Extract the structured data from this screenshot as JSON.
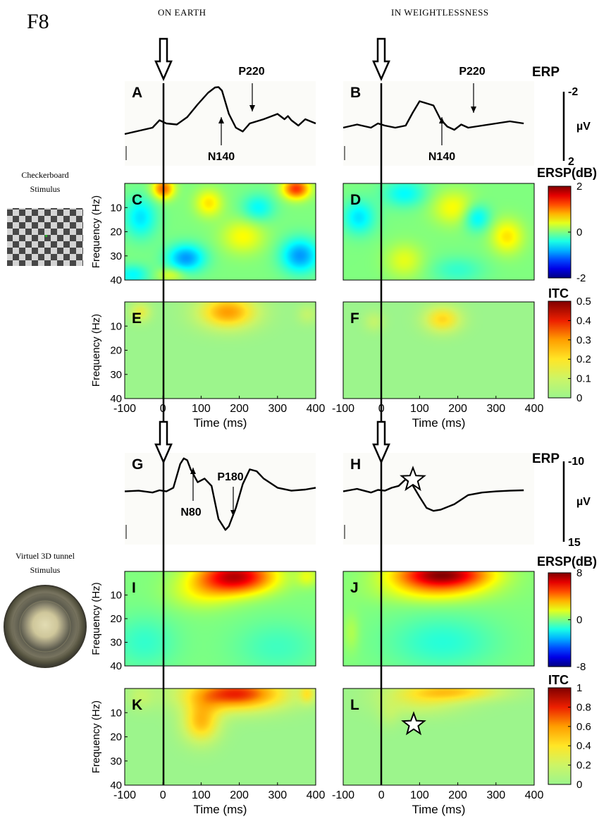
{
  "figure_id": "F8",
  "conditions": {
    "left": "ON EARTH",
    "right": "IN WEIGHTLESSNESS"
  },
  "stimuli": {
    "checkerboard": {
      "line1": "Checkerboard",
      "line2": "Stimulus"
    },
    "tunnel": {
      "line1": "Virtuel 3D tunnel",
      "line2": "Stimulus"
    }
  },
  "colors": {
    "jet_low": "#00007f",
    "jet_mid": "#7fff7f",
    "jet_high": "#7f0000",
    "itc_base": "#9cf58c"
  },
  "icons": [
    "stimulus-onset-arrow-icon",
    "significance-star-icon",
    "checkerboard-icon",
    "tunnel-icon"
  ],
  "chart_data": [
    {
      "type": "line",
      "panel": "A",
      "name": "ERP checkerboard on earth",
      "ylabel": "ERP",
      "unit": "µV",
      "ylim": [
        2,
        -2
      ],
      "x": [
        -100,
        -60,
        -20,
        0,
        20,
        50,
        80,
        110,
        140,
        160,
        170,
        180,
        190,
        200,
        220,
        240,
        260,
        300,
        340,
        360,
        370,
        380,
        400,
        420,
        450
      ],
      "y": [
        0.5,
        0.35,
        0.2,
        -0.15,
        0.0,
        0.05,
        -0.3,
        -0.9,
        -1.45,
        -1.7,
        -1.72,
        -1.55,
        -1.0,
        -0.45,
        0.2,
        0.38,
        0.0,
        -0.2,
        -0.45,
        -0.2,
        -0.35,
        -0.15,
        0.1,
        -0.2,
        0.0
      ],
      "peaks": [
        {
          "label": "N140"
        },
        {
          "label": "P220"
        }
      ],
      "scale_ticks": [
        "-2",
        "µV",
        "2"
      ]
    },
    {
      "type": "line",
      "panel": "B",
      "name": "ERP checkerboard weightlessness",
      "ylabel": "ERP",
      "unit": "µV",
      "ylim": [
        2,
        -2
      ],
      "x": [
        -100,
        -60,
        -20,
        0,
        20,
        50,
        80,
        100,
        120,
        140,
        160,
        180,
        200,
        220,
        240,
        260,
        300,
        340,
        380,
        420
      ],
      "y": [
        0.2,
        0.05,
        0.2,
        0.0,
        0.1,
        0.2,
        0.1,
        -0.5,
        -1.05,
        -0.95,
        -0.85,
        -0.2,
        0.15,
        0.3,
        0.05,
        0.2,
        0.1,
        0.0,
        -0.1,
        0.0
      ],
      "peaks": [
        {
          "label": "N140"
        },
        {
          "label": "P220"
        }
      ]
    },
    {
      "type": "heatmap",
      "panel": "C",
      "measure": "ERSP(dB)",
      "xlabel": "",
      "ylabel": "Frequency (Hz)",
      "xlim": [
        -100,
        400
      ],
      "ylim": [
        0,
        40
      ],
      "clim": [
        -2,
        2
      ],
      "xticks": [],
      "yticks": [
        "10",
        "20",
        "30",
        "40"
      ],
      "colorbar_ticks": [
        "2",
        "0",
        "-2"
      ],
      "blobs": [
        {
          "t": 0,
          "f": 2,
          "st": 20,
          "sf": 3,
          "v": 1.1
        },
        {
          "t": 350,
          "f": 2,
          "st": 25,
          "sf": 3,
          "v": 1.3
        },
        {
          "t": 120,
          "f": 8,
          "st": 25,
          "sf": 4,
          "v": 0.6
        },
        {
          "t": 210,
          "f": 22,
          "st": 40,
          "sf": 5,
          "v": 0.5
        },
        {
          "t": -60,
          "f": 14,
          "st": 30,
          "sf": 6,
          "v": -0.6
        },
        {
          "t": 60,
          "f": 31,
          "st": 35,
          "sf": 4,
          "v": -0.9
        },
        {
          "t": 360,
          "f": 30,
          "st": 35,
          "sf": 5,
          "v": -0.9
        },
        {
          "t": 250,
          "f": 10,
          "st": 30,
          "sf": 4,
          "v": -0.5
        },
        {
          "t": -80,
          "f": 38,
          "st": 30,
          "sf": 3,
          "v": -0.5
        },
        {
          "t": 20,
          "f": 38,
          "st": 25,
          "sf": 2,
          "v": 0.4
        }
      ]
    },
    {
      "type": "heatmap",
      "panel": "D",
      "measure": "ERSP(dB)",
      "xlabel": "",
      "ylabel": "",
      "xlim": [
        -100,
        400
      ],
      "ylim": [
        0,
        40
      ],
      "clim": [
        -2,
        2
      ],
      "xticks": [],
      "yticks": [],
      "blobs": [
        {
          "t": 60,
          "f": 4,
          "st": 40,
          "sf": 4,
          "v": -0.5
        },
        {
          "t": 190,
          "f": 10,
          "st": 40,
          "sf": 5,
          "v": 0.5
        },
        {
          "t": -60,
          "f": 14,
          "st": 30,
          "sf": 5,
          "v": -0.6
        },
        {
          "t": 330,
          "f": 22,
          "st": 30,
          "sf": 5,
          "v": 0.6
        },
        {
          "t": 250,
          "f": 14,
          "st": 25,
          "sf": 4,
          "v": -0.6
        },
        {
          "t": 60,
          "f": 32,
          "st": 35,
          "sf": 5,
          "v": 0.4
        },
        {
          "t": 200,
          "f": 36,
          "st": 50,
          "sf": 4,
          "v": -0.3
        }
      ]
    },
    {
      "type": "heatmap",
      "panel": "E",
      "measure": "ITC",
      "colormap": "itc",
      "xlabel": "Time (ms)",
      "ylabel": "Frequency (Hz)",
      "xlim": [
        -100,
        400
      ],
      "ylim": [
        0,
        40
      ],
      "clim": [
        0,
        0.5
      ],
      "xticks": [
        "-100",
        "0",
        "100",
        "200",
        "300",
        "400"
      ],
      "yticks": [
        "10",
        "20",
        "30",
        "40"
      ],
      "colorbar_ticks": [
        "0.5",
        "0.4",
        "0.3",
        "0.2",
        "0.1",
        "0"
      ],
      "blobs": [
        {
          "t": 170,
          "f": 4,
          "st": 55,
          "sf": 5,
          "v": 0.3
        },
        {
          "t": -60,
          "f": 4,
          "st": 20,
          "sf": 3,
          "v": 0.15
        },
        {
          "t": 380,
          "f": 5,
          "st": 20,
          "sf": 3,
          "v": 0.08
        }
      ]
    },
    {
      "type": "heatmap",
      "panel": "F",
      "measure": "ITC",
      "colormap": "itc",
      "xlabel": "Time (ms)",
      "ylabel": "",
      "xlim": [
        -100,
        400
      ],
      "ylim": [
        0,
        40
      ],
      "clim": [
        0,
        0.5
      ],
      "xticks": [
        "-100",
        "0",
        "100",
        "200",
        "300",
        "400"
      ],
      "yticks": [],
      "blobs": [
        {
          "t": 160,
          "f": 7,
          "st": 35,
          "sf": 4,
          "v": 0.22
        },
        {
          "t": -20,
          "f": 8,
          "st": 20,
          "sf": 3,
          "v": 0.08
        }
      ]
    },
    {
      "type": "line",
      "panel": "G",
      "name": "ERP tunnel on earth",
      "ylabel": "ERP",
      "unit": "µV",
      "ylim": [
        15,
        -10
      ],
      "x": [
        -100,
        -60,
        -20,
        0,
        20,
        40,
        60,
        70,
        80,
        90,
        110,
        130,
        150,
        170,
        190,
        200,
        220,
        240,
        260,
        280,
        300,
        340,
        380,
        420,
        450
      ],
      "y": [
        0.5,
        0.3,
        0.8,
        0.2,
        0.5,
        -0.5,
        -7.0,
        -8.5,
        -8.0,
        -5.5,
        -2.0,
        -3.0,
        -1.0,
        8.0,
        11.0,
        10.0,
        5.0,
        -1.5,
        -5.5,
        -5.0,
        -3.0,
        -0.5,
        0.3,
        0.0,
        -0.5
      ],
      "peaks": [
        {
          "label": "N80"
        },
        {
          "label": "P180"
        }
      ],
      "scale_ticks": [
        "-10",
        "µV",
        "15"
      ]
    },
    {
      "type": "line",
      "panel": "H",
      "name": "ERP tunnel weightlessness",
      "ylabel": "ERP",
      "unit": "µV",
      "ylim": [
        15,
        -10
      ],
      "x": [
        -100,
        -60,
        -20,
        0,
        20,
        40,
        60,
        80,
        100,
        120,
        140,
        160,
        180,
        220,
        260,
        300,
        340,
        380,
        420
      ],
      "y": [
        0.5,
        -0.2,
        0.8,
        0.1,
        0.3,
        -0.5,
        -1.0,
        -2.8,
        -1.2,
        2.0,
        5.0,
        5.8,
        5.5,
        4.0,
        1.5,
        0.8,
        0.5,
        0.3,
        0.2
      ],
      "peaks": []
    },
    {
      "type": "heatmap",
      "panel": "I",
      "measure": "ERSP(dB)",
      "xlabel": "",
      "ylabel": "Frequency (Hz)",
      "xlim": [
        -100,
        400
      ],
      "ylim": [
        0,
        40
      ],
      "clim": [
        -8,
        8
      ],
      "xticks": [],
      "yticks": [
        "10",
        "20",
        "30",
        "40"
      ],
      "colorbar_ticks": [
        "8",
        "0",
        "-8"
      ],
      "blobs": [
        {
          "t": 190,
          "f": 2,
          "st": 70,
          "sf": 5,
          "v": 7.0
        },
        {
          "t": 100,
          "f": 9,
          "st": 60,
          "sf": 5,
          "v": 1.5
        },
        {
          "t": -50,
          "f": 30,
          "st": 60,
          "sf": 8,
          "v": -1.2
        },
        {
          "t": 300,
          "f": 32,
          "st": 80,
          "sf": 8,
          "v": -1.0
        },
        {
          "t": 380,
          "f": 2,
          "st": 20,
          "sf": 3,
          "v": 1.5
        }
      ]
    },
    {
      "type": "heatmap",
      "panel": "J",
      "measure": "ERSP(dB)",
      "xlabel": "",
      "ylabel": "",
      "xlim": [
        -100,
        400
      ],
      "ylim": [
        0,
        40
      ],
      "clim": [
        -8,
        8
      ],
      "xticks": [],
      "yticks": [],
      "blobs": [
        {
          "t": 160,
          "f": 1,
          "st": 85,
          "sf": 4,
          "v": 7.5
        },
        {
          "t": 140,
          "f": 8,
          "st": 100,
          "sf": 4,
          "v": 2.0
        },
        {
          "t": 160,
          "f": 30,
          "st": 100,
          "sf": 8,
          "v": -1.4
        },
        {
          "t": -80,
          "f": 26,
          "st": 15,
          "sf": 6,
          "v": 0.8
        }
      ]
    },
    {
      "type": "heatmap",
      "panel": "K",
      "measure": "ITC",
      "colormap": "itc",
      "xlabel": "Time (ms)",
      "ylabel": "Frequency (Hz)",
      "xlim": [
        -100,
        400
      ],
      "ylim": [
        0,
        40
      ],
      "clim": [
        0,
        1
      ],
      "xticks": [
        "-100",
        "0",
        "100",
        "200",
        "300",
        "400"
      ],
      "yticks": [
        "10",
        "20",
        "30",
        "40"
      ],
      "colorbar_ticks": [
        "1",
        "0.8",
        "0.6",
        "0.4",
        "0.2",
        "0"
      ],
      "blobs": [
        {
          "t": 190,
          "f": 2,
          "st": 95,
          "sf": 5,
          "v": 0.8
        },
        {
          "t": 100,
          "f": 14,
          "st": 35,
          "sf": 6,
          "v": 0.5
        },
        {
          "t": 380,
          "f": 2,
          "st": 15,
          "sf": 3,
          "v": 0.3
        },
        {
          "t": -60,
          "f": 3,
          "st": 25,
          "sf": 4,
          "v": 0.15
        }
      ]
    },
    {
      "type": "heatmap",
      "panel": "L",
      "measure": "ITC",
      "colormap": "itc",
      "xlabel": "Time (ms)",
      "ylabel": "",
      "xlim": [
        -100,
        400
      ],
      "ylim": [
        0,
        40
      ],
      "clim": [
        0,
        1
      ],
      "xticks": [
        "-100",
        "0",
        "100",
        "200",
        "300",
        "400"
      ],
      "yticks": [],
      "blobs": [
        {
          "t": 180,
          "f": 1,
          "st": 100,
          "sf": 3,
          "v": 0.45
        },
        {
          "t": 100,
          "f": 6,
          "st": 80,
          "sf": 4,
          "v": 0.2
        },
        {
          "t": 20,
          "f": 11,
          "st": 20,
          "sf": 4,
          "v": 0.1
        }
      ]
    }
  ]
}
